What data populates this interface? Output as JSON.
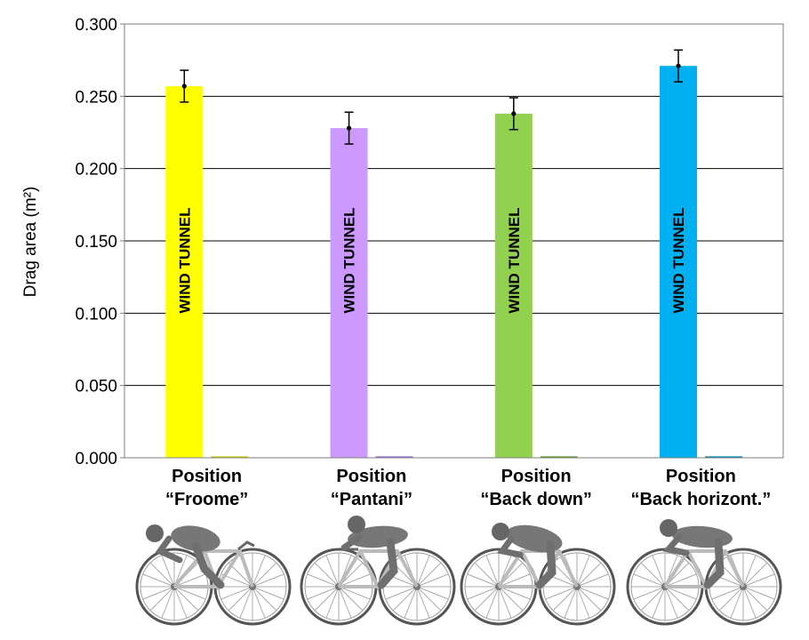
{
  "chart_data": {
    "type": "bar",
    "categories": [
      [
        "Position",
        "“Froome”"
      ],
      [
        "Position",
        "“Pantani”"
      ],
      [
        "Position",
        "“Back down”"
      ],
      [
        "Position",
        "“Back horizont.”"
      ]
    ],
    "series": [
      {
        "name": "WIND TUNNEL",
        "values": [
          0.257,
          0.228,
          0.238,
          0.271
        ],
        "errors": [
          0.011,
          0.011,
          0.011,
          0.011
        ],
        "colors": [
          "#ffff00",
          "#cc99ff",
          "#92d050",
          "#00b0f0"
        ]
      },
      {
        "values": [
          0.001,
          0.001,
          0.001,
          0.001
        ],
        "colors": [
          "#c9c900",
          "#9966cc",
          "#5a9a2a",
          "#0080b0"
        ]
      }
    ],
    "bar_label": "WIND TUNNEL",
    "ylabel": "Drag area (m²)",
    "ylim": [
      0,
      0.3
    ],
    "yticks": [
      "0.000",
      "0.050",
      "0.100",
      "0.150",
      "0.200",
      "0.250",
      "0.300"
    ],
    "grid": true,
    "legend": "none"
  },
  "illustrations": [
    {
      "icon": "cyclist-froome-icon"
    },
    {
      "icon": "cyclist-pantani-icon"
    },
    {
      "icon": "cyclist-back-down-icon"
    },
    {
      "icon": "cyclist-back-horizontal-icon"
    }
  ]
}
